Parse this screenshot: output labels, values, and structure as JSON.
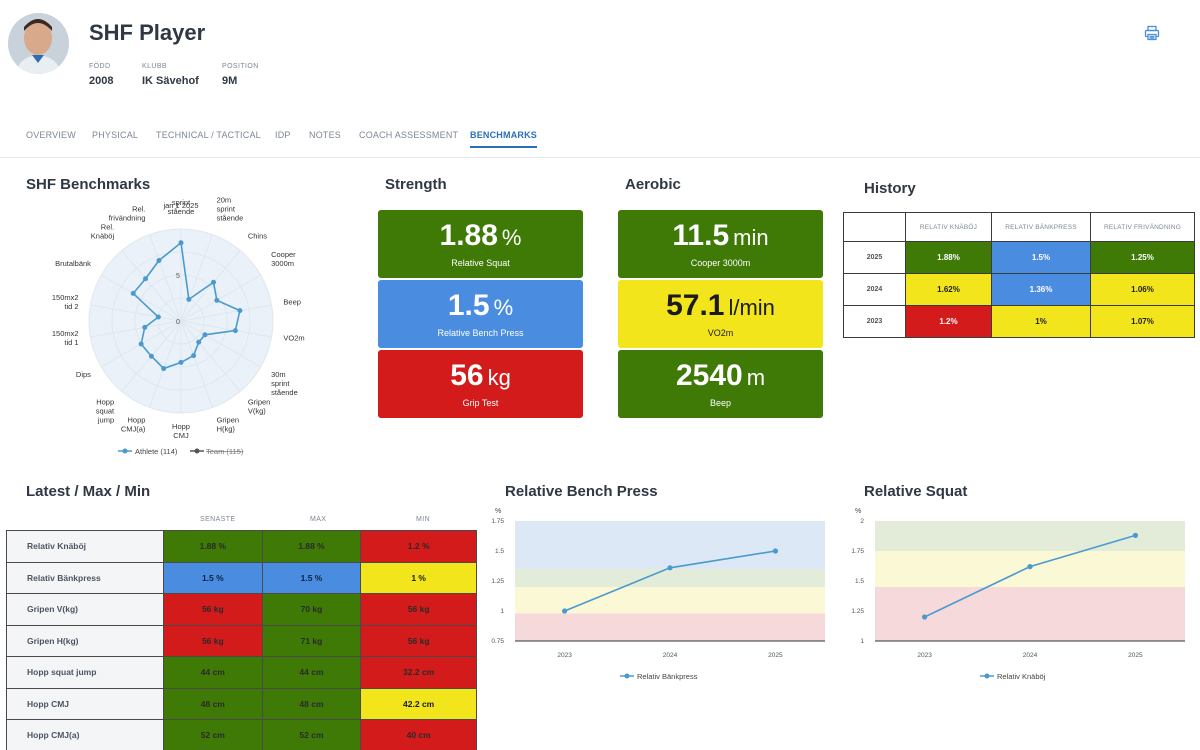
{
  "player": {
    "name": "SHF Player",
    "meta": [
      {
        "label": "FÖDD",
        "value": "2008"
      },
      {
        "label": "KLUBB",
        "value": "IK Sävehof"
      },
      {
        "label": "POSITION",
        "value": "9M"
      }
    ]
  },
  "tabs": [
    "OVERVIEW",
    "PHYSICAL",
    "TECHNICAL / TACTICAL",
    "IDP",
    "NOTES",
    "COACH ASSESSMENT",
    "BENCHMARKS"
  ],
  "active_tab": "BENCHMARKS",
  "sections": {
    "benchmarks": "SHF Benchmarks",
    "strength": "Strength",
    "aerobic": "Aerobic",
    "history": "History",
    "lmm": "Latest / Max / Min",
    "bench_chart": "Relative Bench Press",
    "squat_chart": "Relative Squat"
  },
  "strength": [
    {
      "value": "1.88",
      "unit": "%",
      "caption": "Relative Squat",
      "color": "#3e7a05"
    },
    {
      "value": "1.5",
      "unit": "%",
      "caption": "Relative Bench Press",
      "color": "#4a8de0"
    },
    {
      "value": "56",
      "unit": "kg",
      "caption": "Grip Test",
      "color": "#d41b1b"
    }
  ],
  "aerobic": [
    {
      "value": "11.5",
      "unit": "min",
      "caption": "Cooper 3000m",
      "color": "#3e7a05"
    },
    {
      "value": "57.1",
      "unit": "l/min",
      "caption": "VO2m",
      "color": "#f2e51b"
    },
    {
      "value": "2540",
      "unit": "m",
      "caption": "Beep",
      "color": "#3e7a05"
    }
  ],
  "history": {
    "headers": [
      "RELATIV KNÄBÖJ",
      "RELATIV BÄNKPRESS",
      "RELATIV FRIVÄNDNING"
    ],
    "rows": [
      {
        "year": "2025",
        "cells": [
          {
            "v": "1.88%",
            "c": "green"
          },
          {
            "v": "1.5%",
            "c": "blue"
          },
          {
            "v": "1.25%",
            "c": "green"
          }
        ]
      },
      {
        "year": "2024",
        "cells": [
          {
            "v": "1.62%",
            "c": "yellow"
          },
          {
            "v": "1.36%",
            "c": "blue"
          },
          {
            "v": "1.06%",
            "c": "yellow"
          }
        ]
      },
      {
        "year": "2023",
        "cells": [
          {
            "v": "1.2%",
            "c": "red"
          },
          {
            "v": "1%",
            "c": "yellow"
          },
          {
            "v": "1.07%",
            "c": "yellow"
          }
        ]
      }
    ]
  },
  "lmm": {
    "headers": [
      "SENASTE",
      "MAX",
      "MIN"
    ],
    "rows": [
      {
        "name": "Relativ Knäböj",
        "cells": [
          {
            "v": "1.88 %",
            "c": "green"
          },
          {
            "v": "1.88 %",
            "c": "green"
          },
          {
            "v": "1.2 %",
            "c": "red"
          }
        ]
      },
      {
        "name": "Relativ Bänkpress",
        "cells": [
          {
            "v": "1.5 %",
            "c": "blue"
          },
          {
            "v": "1.5 %",
            "c": "blue"
          },
          {
            "v": "1 %",
            "c": "yellow"
          }
        ]
      },
      {
        "name": "Gripen V(kg)",
        "cells": [
          {
            "v": "56 kg",
            "c": "red"
          },
          {
            "v": "70 kg",
            "c": "green"
          },
          {
            "v": "56 kg",
            "c": "red"
          }
        ]
      },
      {
        "name": "Gripen H(kg)",
        "cells": [
          {
            "v": "56 kg",
            "c": "red"
          },
          {
            "v": "71 kg",
            "c": "green"
          },
          {
            "v": "56 kg",
            "c": "red"
          }
        ]
      },
      {
        "name": "Hopp squat jump",
        "cells": [
          {
            "v": "44 cm",
            "c": "green"
          },
          {
            "v": "44 cm",
            "c": "green"
          },
          {
            "v": "32.2 cm",
            "c": "red"
          }
        ]
      },
      {
        "name": "Hopp CMJ",
        "cells": [
          {
            "v": "48 cm",
            "c": "green"
          },
          {
            "v": "48 cm",
            "c": "green"
          },
          {
            "v": "42.2 cm",
            "c": "yellow"
          }
        ]
      },
      {
        "name": "Hopp CMJ(a)",
        "cells": [
          {
            "v": "52 cm",
            "c": "green"
          },
          {
            "v": "52 cm",
            "c": "green"
          },
          {
            "v": "40 cm",
            "c": "red"
          }
        ]
      }
    ]
  },
  "chart_data": [
    {
      "type": "radar",
      "title": "SHF Benchmarks",
      "date_label": "jan 1 2025",
      "axes": [
        "10m sprint stående",
        "20m sprint stående",
        "Chins",
        "Cooper 3000m",
        "Beep",
        "VO2m",
        "30m sprint stående",
        "Gripen V(kg)",
        "Gripen H(kg)",
        "Hopp CMJ",
        "Hopp CMJ(a)",
        "Hopp squat jump",
        "Dips",
        "150mx2 tid 1",
        "150mx2 tid 2",
        "Brutalbänk",
        "Rel. Knäböj",
        "Rel. frivändning"
      ],
      "rlim": [
        0,
        10
      ],
      "tick_labels": [
        "0",
        "5"
      ],
      "series": [
        {
          "name": "Athlete (114)",
          "values": [
            8.5,
            2.5,
            5.5,
            4.5,
            6.5,
            6,
            3,
            3,
            4,
            4.5,
            5.5,
            5,
            5,
            4,
            2.5,
            6,
            6,
            7
          ]
        },
        {
          "name": "Team (115)",
          "values": []
        }
      ]
    },
    {
      "type": "line",
      "title": "Relative Bench Press",
      "ylabel": "%",
      "x": [
        "2023",
        "2024",
        "2025"
      ],
      "series": [
        {
          "name": "Relativ Bänkpress",
          "values": [
            1.0,
            1.36,
            1.5
          ]
        }
      ],
      "ylim": [
        0.75,
        1.75
      ],
      "yticks": [
        "0.75",
        "1",
        "1.25",
        "1.5",
        "1.75"
      ],
      "bands": [
        {
          "from": 0.75,
          "to": 0.98,
          "color": "#f6dadb"
        },
        {
          "from": 0.98,
          "to": 1.2,
          "color": "#fbf8d6"
        },
        {
          "from": 1.2,
          "to": 1.35,
          "color": "#e3ecd9"
        },
        {
          "from": 1.35,
          "to": 1.75,
          "color": "#dce8f5"
        }
      ]
    },
    {
      "type": "line",
      "title": "Relative Squat",
      "ylabel": "%",
      "x": [
        "2023",
        "2024",
        "2025"
      ],
      "series": [
        {
          "name": "Relativ Knäböj",
          "values": [
            1.2,
            1.62,
            1.88
          ]
        }
      ],
      "ylim": [
        1.0,
        2.0
      ],
      "yticks": [
        "1",
        "1.25",
        "1.5",
        "1.75",
        "2"
      ],
      "bands": [
        {
          "from": 1.0,
          "to": 1.45,
          "color": "#f6dadb"
        },
        {
          "from": 1.45,
          "to": 1.75,
          "color": "#fbf8d6"
        },
        {
          "from": 1.75,
          "to": 2.0,
          "color": "#e3ecd9"
        }
      ]
    }
  ],
  "colors": {
    "green": "#3e7a05",
    "blue": "#4a8de0",
    "red": "#d41b1b",
    "yellow": "#f2e51b",
    "line": "#4a9ad0"
  }
}
